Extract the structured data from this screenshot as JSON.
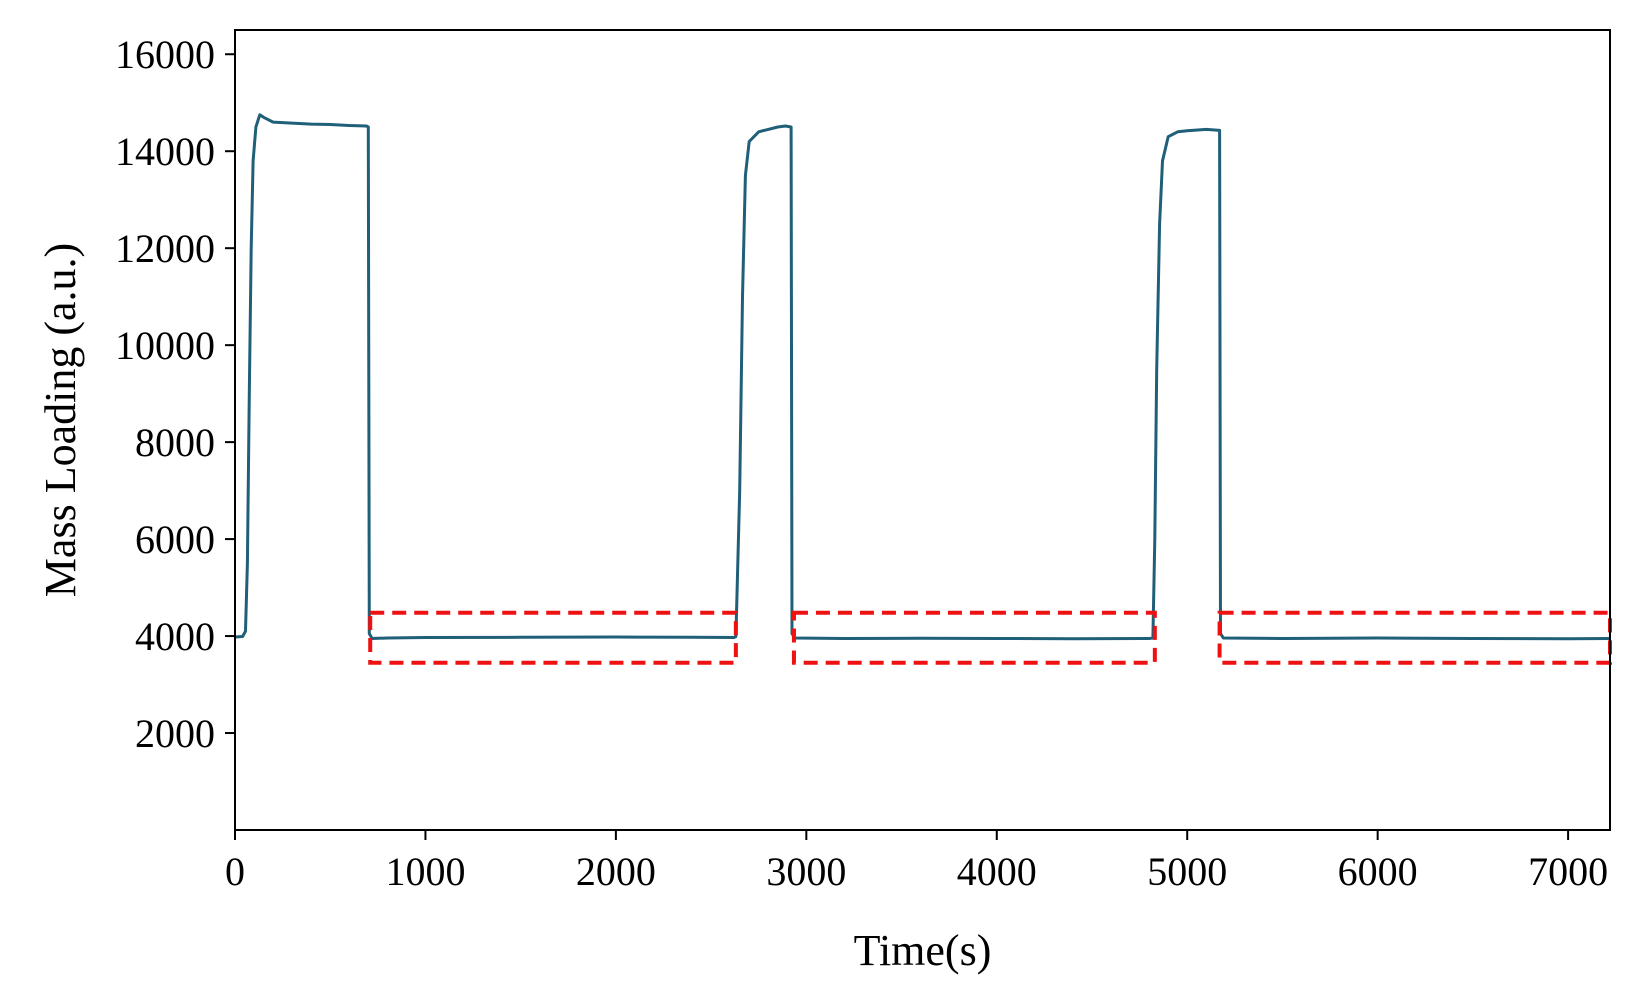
{
  "chart_data": {
    "type": "line",
    "title": "",
    "xlabel": "Time(s)",
    "ylabel": "Mass Loading (a.u.)",
    "xlim": [
      0,
      7220
    ],
    "ylim": [
      0,
      16500
    ],
    "x_ticks": [
      0,
      1000,
      2000,
      3000,
      4000,
      5000,
      6000,
      7000
    ],
    "y_ticks": [
      2000,
      4000,
      6000,
      8000,
      10000,
      12000,
      14000,
      16000
    ],
    "grid": false,
    "line_color": "#1f5f78",
    "series": [
      {
        "name": "",
        "points": [
          [
            0,
            3980
          ],
          [
            40,
            3990
          ],
          [
            55,
            4100
          ],
          [
            65,
            5500
          ],
          [
            75,
            9000
          ],
          [
            85,
            12000
          ],
          [
            95,
            13800
          ],
          [
            110,
            14500
          ],
          [
            130,
            14750
          ],
          [
            150,
            14700
          ],
          [
            200,
            14600
          ],
          [
            300,
            14580
          ],
          [
            400,
            14560
          ],
          [
            500,
            14550
          ],
          [
            600,
            14530
          ],
          [
            690,
            14520
          ],
          [
            700,
            14500
          ],
          [
            705,
            4050
          ],
          [
            720,
            3950
          ],
          [
            800,
            3960
          ],
          [
            1000,
            3970
          ],
          [
            1500,
            3975
          ],
          [
            2000,
            3980
          ],
          [
            2400,
            3975
          ],
          [
            2620,
            3970
          ],
          [
            2630,
            3990
          ],
          [
            2650,
            7000
          ],
          [
            2665,
            11000
          ],
          [
            2680,
            13500
          ],
          [
            2700,
            14200
          ],
          [
            2750,
            14400
          ],
          [
            2800,
            14450
          ],
          [
            2850,
            14500
          ],
          [
            2890,
            14520
          ],
          [
            2920,
            14500
          ],
          [
            2925,
            4050
          ],
          [
            2940,
            3960
          ],
          [
            3200,
            3950
          ],
          [
            3600,
            3955
          ],
          [
            4000,
            3950
          ],
          [
            4400,
            3945
          ],
          [
            4800,
            3950
          ],
          [
            4820,
            3960
          ],
          [
            4830,
            6000
          ],
          [
            4840,
            9500
          ],
          [
            4855,
            12500
          ],
          [
            4870,
            13800
          ],
          [
            4900,
            14300
          ],
          [
            4950,
            14400
          ],
          [
            5000,
            14420
          ],
          [
            5100,
            14450
          ],
          [
            5170,
            14430
          ],
          [
            5175,
            4050
          ],
          [
            5190,
            3960
          ],
          [
            5500,
            3950
          ],
          [
            6000,
            3960
          ],
          [
            6500,
            3950
          ],
          [
            7000,
            3945
          ],
          [
            7220,
            3950
          ]
        ]
      }
    ],
    "highlight_boxes": [
      {
        "x": [
          710,
          2630
        ],
        "y": [
          3450,
          4480
        ],
        "color": "#ee1111"
      },
      {
        "x": [
          2935,
          4830
        ],
        "y": [
          3450,
          4480
        ],
        "color": "#ee1111"
      },
      {
        "x": [
          5170,
          7220
        ],
        "y": [
          3450,
          4480
        ],
        "color": "#ee1111"
      }
    ]
  }
}
